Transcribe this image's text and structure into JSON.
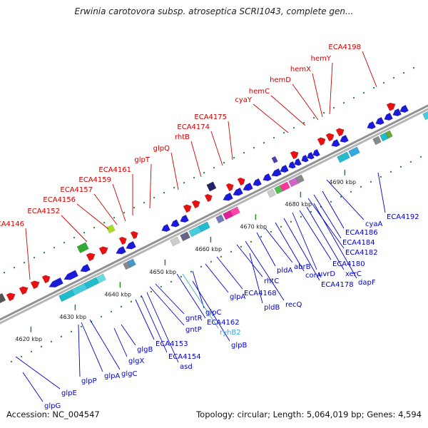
{
  "title": "Erwinia carotovora subsp. atroseptica SCRI1043, complete gen...",
  "footer": {
    "accession": "Accession: NC_004547",
    "summary": "Topology: circular; Length: 5,064,019 bp; Genes: 4,594"
  },
  "colors": {
    "forward_label": "#cc0000",
    "reverse_label": "#0000cc",
    "rna_label": "#33aadd",
    "forward_gene": "#e81010",
    "reverse_gene": "#1a1ad8",
    "backbone": "#999999",
    "tick": "#228822"
  },
  "scale_labels": [
    "4620 kbp",
    "4630 kbp",
    "4640 kbp",
    "4650 kbp",
    "4660 kbp",
    "4670 kbp",
    "4680 kbp",
    "4690 kbp"
  ],
  "forward_labels": [
    "ECA4146",
    "ECA4152",
    "ECA4156",
    "ECA4157",
    "ECA4159",
    "ECA4161",
    "glpT",
    "glpQ",
    "rhtB",
    "ECA4174",
    "ECA4175",
    "cyaY",
    "hemC",
    "hemD",
    "hemX",
    "hemY",
    "ECA4198"
  ],
  "reverse_labels": [
    "glpG",
    "glpE",
    "glpP",
    "glpA",
    "glgC",
    "glgX",
    "glgB",
    "ECA4153",
    "ECA4154",
    "asd",
    "gntP",
    "gntR",
    "ECA4162",
    "glpC",
    "glpB",
    "glpA",
    "ECA4168",
    "pldB",
    "rhtC",
    "recQ",
    "pldA",
    "abrB",
    "corA",
    "ECA4178",
    "uvrD",
    "ECA4180",
    "xerC",
    "dapF",
    "ECA4182",
    "ECA4184",
    "ECA4186",
    "cyaA",
    "ECA4192"
  ],
  "rna_labels": [
    "ryhB2"
  ]
}
